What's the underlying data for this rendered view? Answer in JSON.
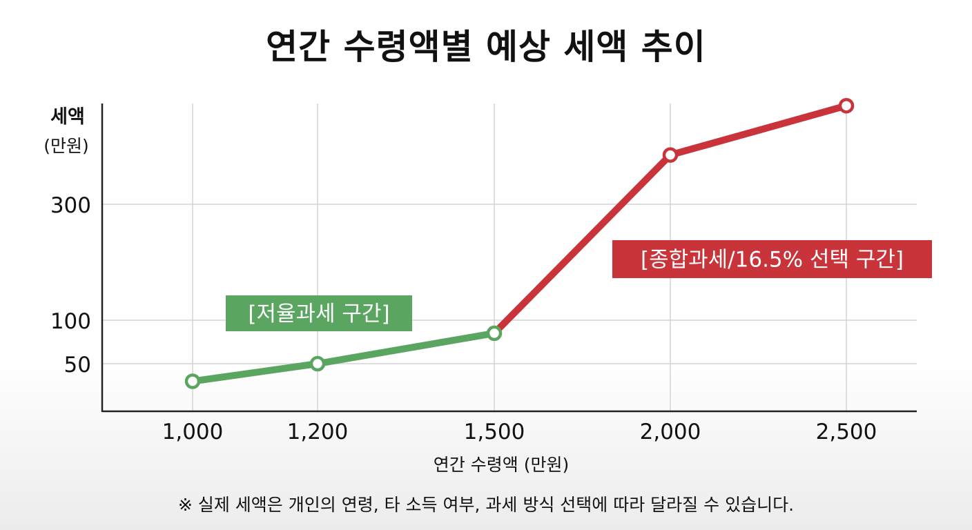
{
  "title": "연간 수령액별 예상 세액 추이",
  "footnote": "※ 실제 세액은 개인의 연령, 타 소득 여부, 과세 방식 선택에 따라 달라질 수 있습니다.",
  "colors": {
    "green": "#5aa661",
    "red": "#c8343a",
    "axis": "#222222",
    "grid": "#d4d4d4"
  },
  "chart_data": {
    "type": "line",
    "title": "연간 수령액별 예상 세액 추이",
    "xlabel": "연간 수령액 (만원)",
    "ylabel": [
      "세액",
      "(만원)"
    ],
    "x_ticks": [
      "1,000",
      "1,200",
      "1,500",
      "2,000",
      "2,500"
    ],
    "y_ticks": [
      50,
      100,
      300
    ],
    "grid": true,
    "points": [
      {
        "x": "1,000",
        "y": 35
      },
      {
        "x": "1,200",
        "y": 50
      },
      {
        "x": "1,500",
        "y": 85
      },
      {
        "x": "2,000",
        "y": 385
      },
      {
        "x": "2,500",
        "y": 470
      }
    ],
    "segments": [
      {
        "name": "[저율과세 구간]",
        "from": 0,
        "to": 2,
        "color": "#5aa661"
      },
      {
        "name": "[종합과세/16.5% 선택 구간]",
        "from": 2,
        "to": 4,
        "color": "#c8343a"
      }
    ]
  }
}
